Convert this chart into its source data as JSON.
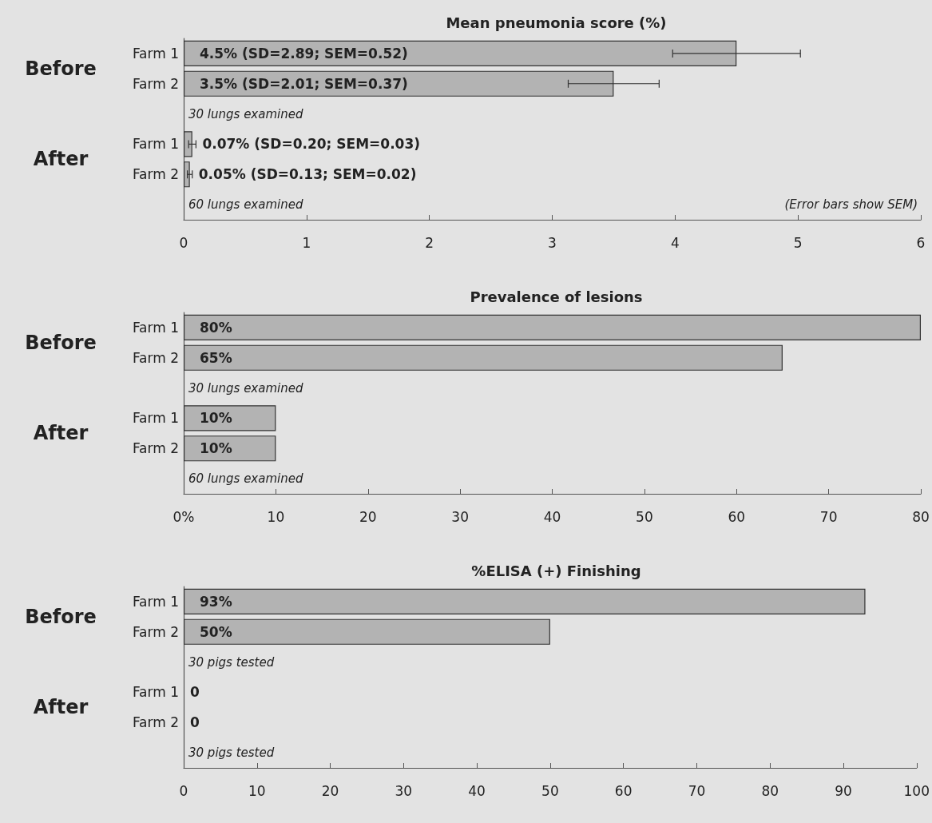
{
  "chart_data": [
    {
      "type": "bar",
      "orientation": "horizontal",
      "title": "Mean pneumonia score (%)",
      "categories": [
        "Farm 1",
        "Farm 2",
        null,
        "Farm 1",
        "Farm 2",
        null
      ],
      "values": [
        4.5,
        3.5,
        null,
        0.07,
        0.05,
        null
      ],
      "errors": [
        0.52,
        0.37,
        null,
        0.03,
        0.02,
        null
      ],
      "value_labels": [
        "4.5% (SD=2.89; SEM=0.52)",
        "3.5% (SD=2.01; SEM=0.37)",
        null,
        "0.07% (SD=0.20; SEM=0.03)",
        "0.05% (SD=0.13; SEM=0.02)",
        null
      ],
      "color": "#b3b3b3",
      "xlim": [
        0,
        6
      ],
      "xticks": [
        0,
        1,
        2,
        3,
        4,
        5,
        6
      ],
      "grid": false,
      "annotations": [
        "Before",
        "After",
        "30 lungs examined",
        "60 lungs examined",
        "(Error bars show SEM)"
      ]
    },
    {
      "type": "bar",
      "orientation": "horizontal",
      "title": "Prevalence of lesions",
      "categories": [
        "Farm 1",
        "Farm 2",
        null,
        "Farm 1",
        "Farm 2",
        null
      ],
      "values": [
        80,
        65,
        null,
        10,
        10,
        null
      ],
      "value_labels": [
        "80%",
        "65%",
        null,
        "10%",
        "10%",
        null
      ],
      "color": "#b3b3b3",
      "xlim": [
        0,
        80
      ],
      "xticks": [
        {
          "value": 0,
          "label": "0%"
        },
        10,
        20,
        30,
        40,
        50,
        60,
        70,
        80
      ],
      "grid": false,
      "annotations": [
        "Before",
        "After",
        "30 lungs examined",
        "60 lungs examined"
      ]
    },
    {
      "type": "bar",
      "orientation": "horizontal",
      "title": "%ELISA (+) Finishing",
      "categories": [
        "Farm 1",
        "Farm 2",
        null,
        "Farm 1",
        "Farm 2",
        null
      ],
      "values": [
        93,
        50,
        null,
        0,
        0,
        null
      ],
      "value_labels": [
        "93%",
        "50%",
        null,
        "0",
        "0",
        null
      ],
      "color": "#b3b3b3",
      "xlim": [
        0,
        100
      ],
      "xticks": [
        0,
        10,
        20,
        30,
        40,
        50,
        60,
        70,
        80,
        90,
        100
      ],
      "grid": false,
      "annotations": [
        "Before",
        "After",
        "30 pigs tested",
        "30 pigs tested"
      ]
    }
  ]
}
